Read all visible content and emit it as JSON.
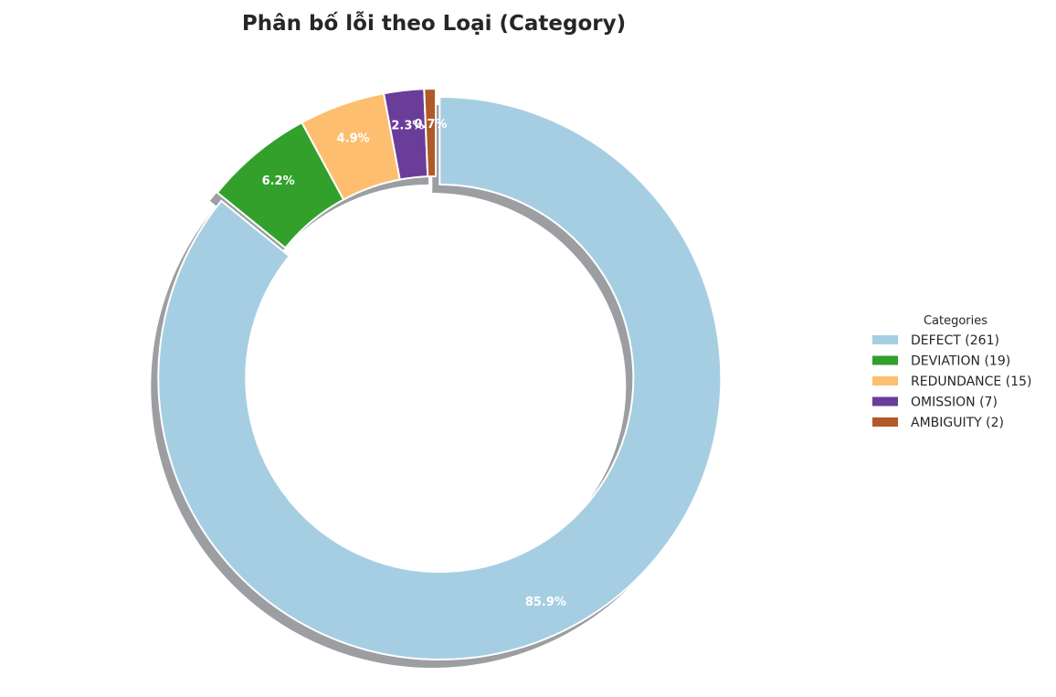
{
  "chart_data": {
    "type": "pie",
    "title": "Phân bố lỗi theo Loại (Category)",
    "donut": true,
    "start_angle_deg": 90,
    "direction": "clockwise",
    "shadow": true,
    "legend": {
      "title": "Categories",
      "placement": "right"
    },
    "slices": [
      {
        "label": "DEFECT",
        "value": 261,
        "pct_label": "85.9%",
        "legend_label": "DEFECT (261)",
        "color": "#a6cee3",
        "explode": true
      },
      {
        "label": "DEVIATION",
        "value": 19,
        "pct_label": "6.2%",
        "legend_label": "DEVIATION (19)",
        "color": "#33a02c",
        "explode": false
      },
      {
        "label": "REDUNDANCE",
        "value": 15,
        "pct_label": "4.9%",
        "legend_label": "REDUNDANCE (15)",
        "color": "#fdbf6f",
        "explode": false
      },
      {
        "label": "OMISSION",
        "value": 7,
        "pct_label": "2.3%",
        "legend_label": "OMISSION (7)",
        "color": "#6a3d9a",
        "explode": false
      },
      {
        "label": "AMBIGUITY",
        "value": 2,
        "pct_label": "0.7%",
        "legend_label": "AMBIGUITY (2)",
        "color": "#b15928",
        "explode": false
      }
    ]
  }
}
